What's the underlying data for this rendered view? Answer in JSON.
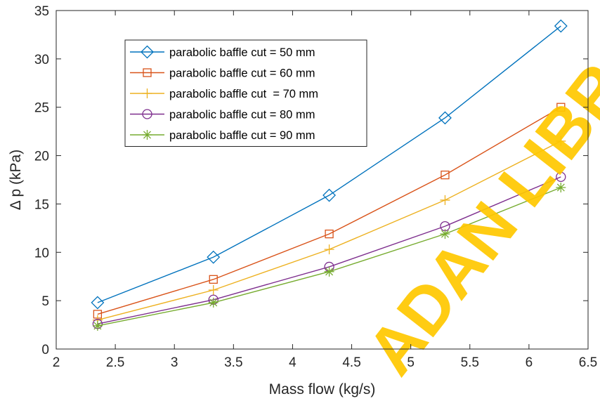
{
  "chart_data": {
    "type": "line",
    "x": [
      2.35,
      3.33,
      4.31,
      5.29,
      6.27
    ],
    "series": [
      {
        "name": "parabolic baffle cut = 50 mm",
        "values": [
          4.8,
          9.5,
          15.9,
          23.9,
          33.4
        ],
        "color": "#0072BD",
        "marker": "diamond"
      },
      {
        "name": "parabolic baffle cut = 60 mm",
        "values": [
          3.6,
          7.2,
          11.9,
          18.0,
          25.0
        ],
        "color": "#D95319",
        "marker": "square"
      },
      {
        "name": "parabolic baffle cut  = 70 mm",
        "values": [
          3.0,
          6.1,
          10.3,
          15.4,
          21.5
        ],
        "color": "#EDB120",
        "marker": "plus"
      },
      {
        "name": "parabolic baffle cut = 80 mm",
        "values": [
          2.6,
          5.1,
          8.5,
          12.7,
          17.8
        ],
        "color": "#7E2F8E",
        "marker": "circle"
      },
      {
        "name": "parabolic baffle cut = 90 mm",
        "values": [
          2.4,
          4.8,
          8.0,
          11.9,
          16.7
        ],
        "color": "#77AC30",
        "marker": "asterisk"
      }
    ],
    "xlabel": "Mass flow (kg/s)",
    "ylabel": "Δ p (kPa)",
    "xlim": [
      2,
      6.5
    ],
    "ylim": [
      0,
      35
    ],
    "xticks": [
      2,
      2.5,
      3,
      3.5,
      4,
      4.5,
      5,
      5.5,
      6,
      6.5
    ],
    "xtick_labels": [
      "2",
      "2.5",
      "3",
      "3.5",
      "4",
      "4.5",
      "5",
      "5.5",
      "6",
      "6.5"
    ],
    "yticks": [
      0,
      5,
      10,
      15,
      20,
      25,
      30,
      35
    ],
    "ytick_labels": [
      "0",
      "5",
      "10",
      "15",
      "20",
      "25",
      "30",
      "35"
    ],
    "grid": false,
    "legend_position": "top-left"
  },
  "watermark": {
    "text": "ADAN LIBR",
    "color": "#ffc800"
  }
}
